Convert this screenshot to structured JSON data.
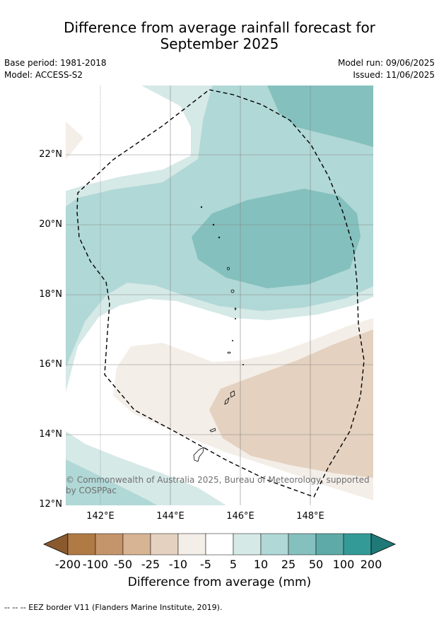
{
  "title_line1": "Difference from average rainfall forecast for",
  "title_line2": "September 2025",
  "base_period": "Base period: 1981-2018",
  "model": "Model: ACCESS-S2",
  "model_run": "Model run: 09/06/2025",
  "issued": "Issued: 11/06/2025",
  "lat_labels": [
    "22°N",
    "20°N",
    "18°N",
    "16°N",
    "14°N",
    "12°N"
  ],
  "lon_labels": [
    "142°E",
    "144°E",
    "146°E",
    "148°E"
  ],
  "copyright": "© Commonwealth of Australia 2025, Bureau of Meteorology, supported by COSPPac",
  "colorbar": {
    "ticks": [
      "-200",
      "-100",
      "-50",
      "-25",
      "-10",
      "-5",
      "5",
      "10",
      "25",
      "50",
      "100",
      "200"
    ],
    "colors": [
      "#8a5a2e",
      "#b07a45",
      "#c4946a",
      "#d6b494",
      "#e4d1bf",
      "#f4eee8",
      "#ffffff",
      "#d5e9e7",
      "#b0d8d6",
      "#84c0be",
      "#5eaaa8",
      "#339a97",
      "#1f7a77"
    ],
    "label": "Difference from average (mm)"
  },
  "footnote": "-- -- -- EEZ border V11 (Flanders Marine Institute, 2019)."
}
